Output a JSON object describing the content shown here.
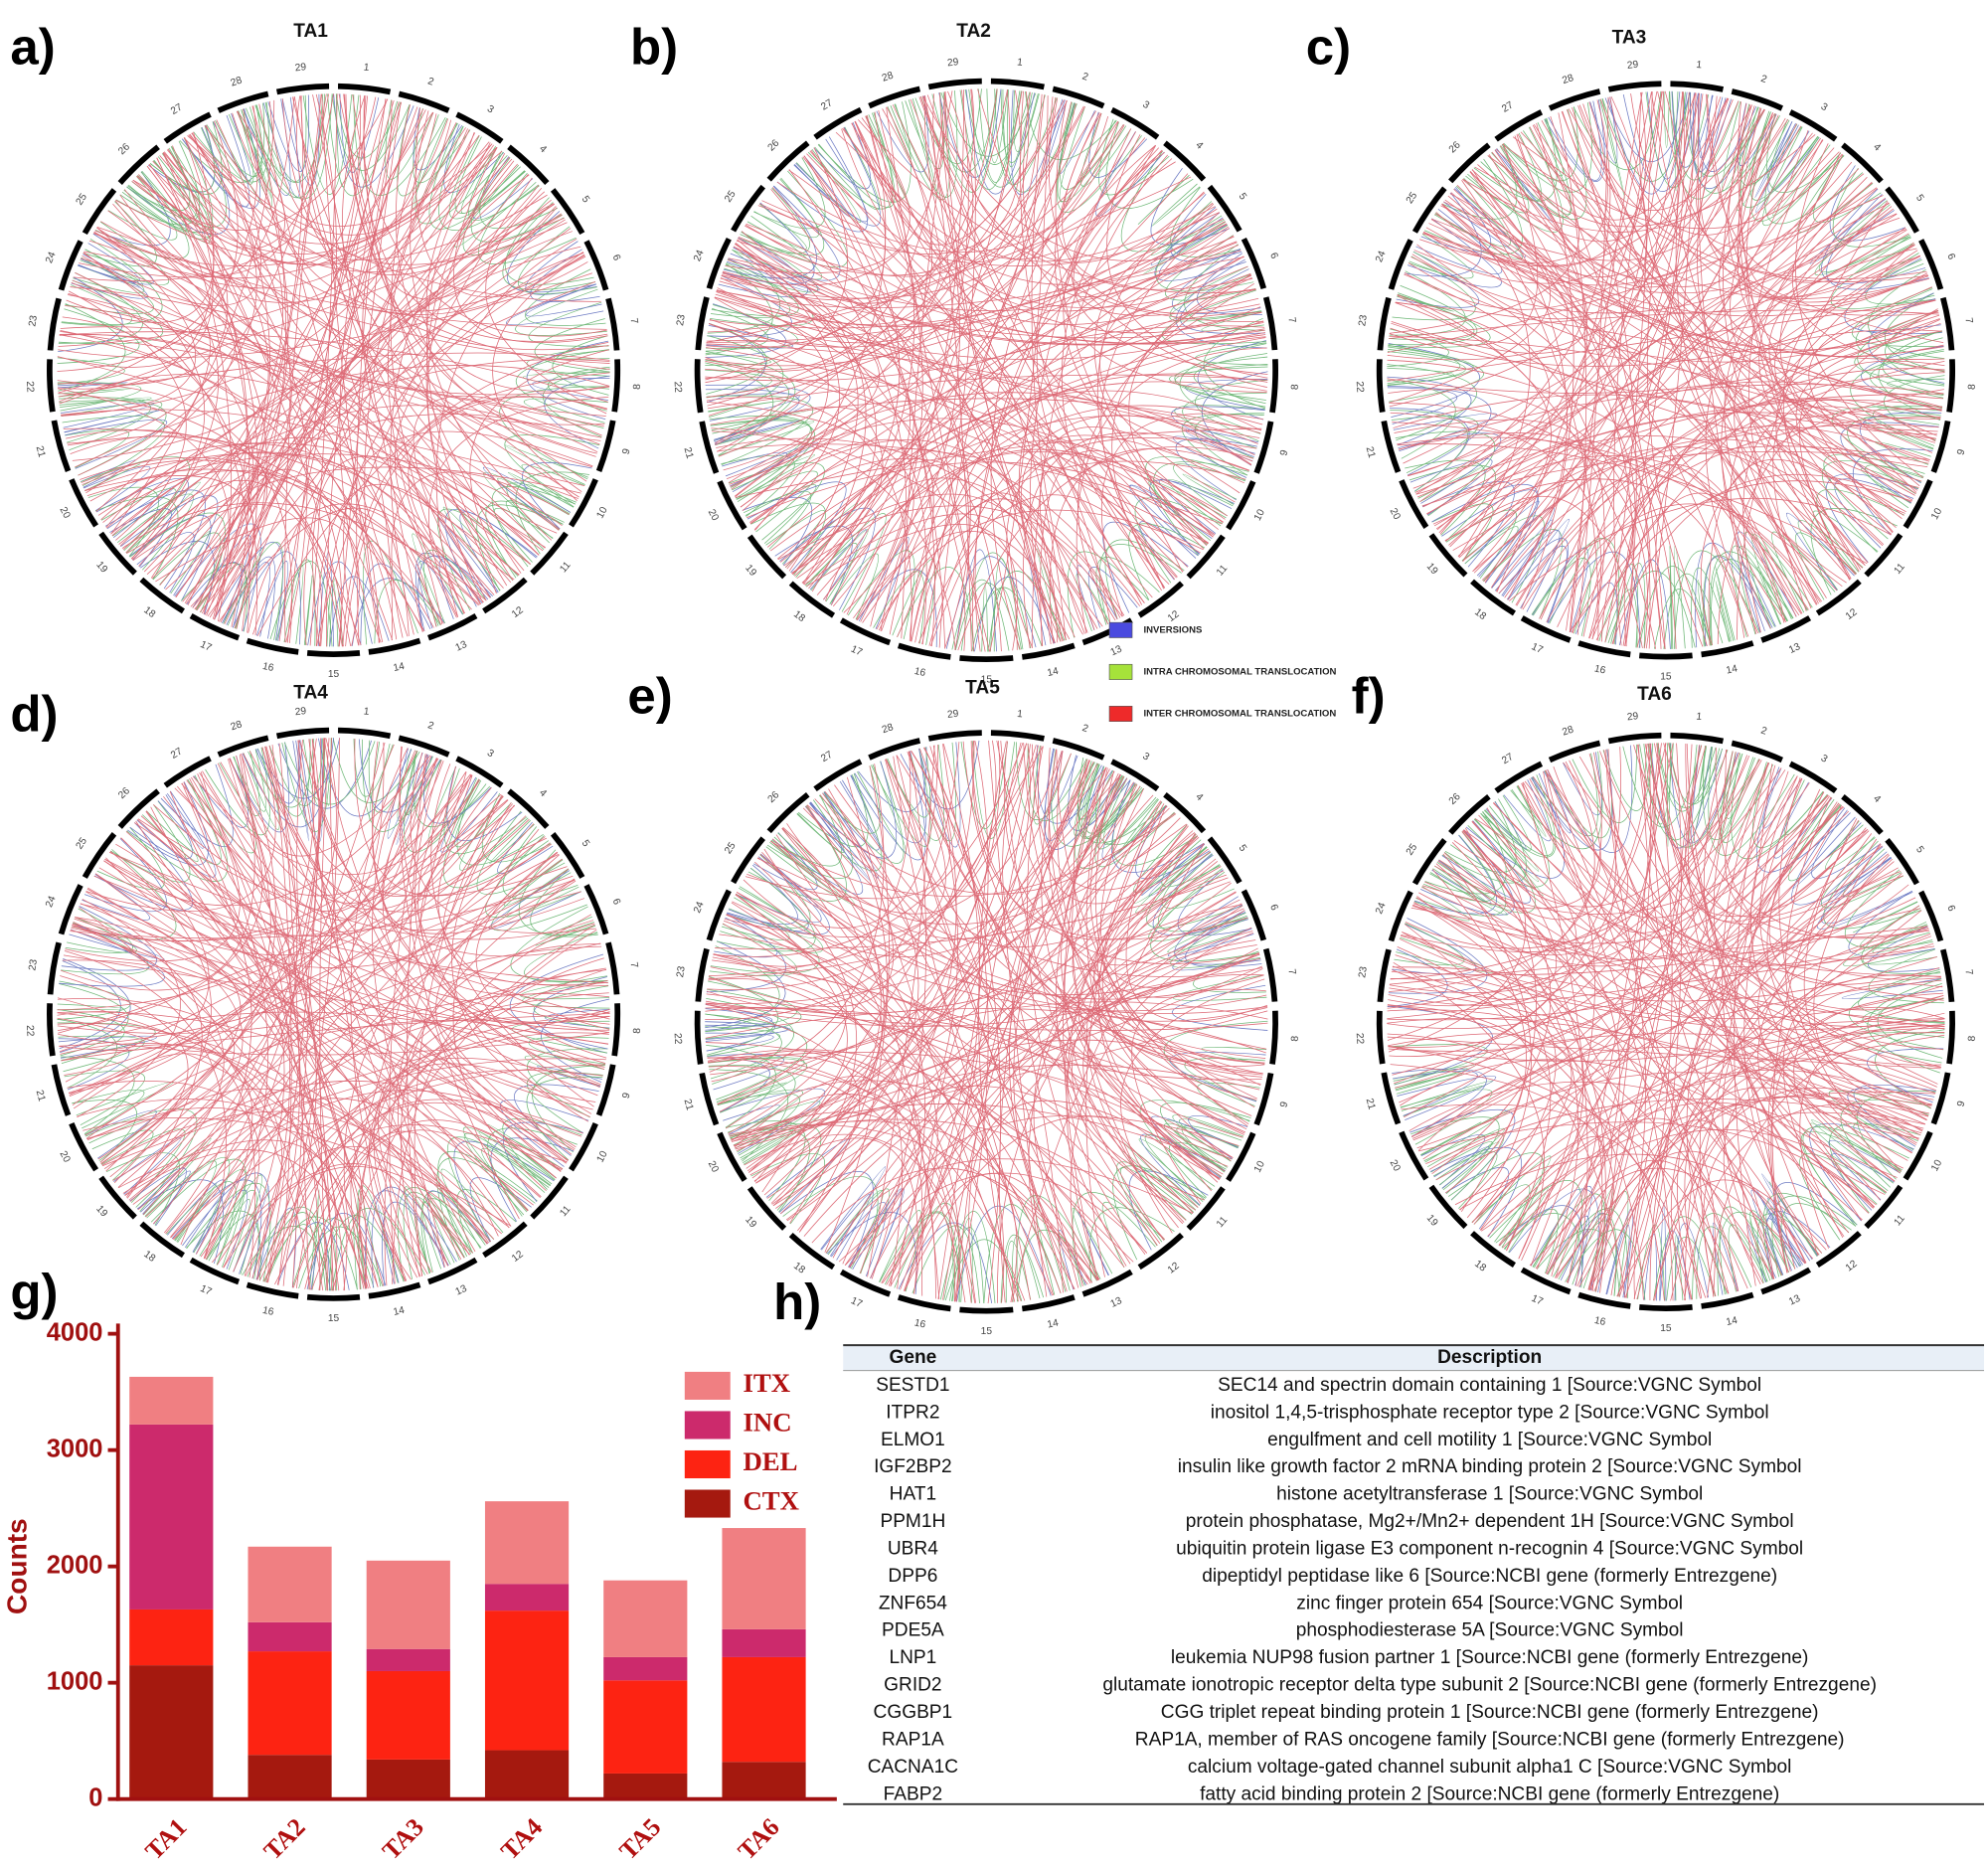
{
  "panels": [
    {
      "label": "a)",
      "title": "TA1"
    },
    {
      "label": "b)",
      "title": "TA2"
    },
    {
      "label": "c)",
      "title": "TA3"
    },
    {
      "label": "d)",
      "title": "TA4"
    },
    {
      "label": "e)",
      "title": "TA5"
    },
    {
      "label": "f)",
      "title": "TA6"
    }
  ],
  "chromosomes": [
    "1",
    "2",
    "3",
    "4",
    "5",
    "6",
    "7",
    "8",
    "9",
    "10",
    "11",
    "12",
    "13",
    "14",
    "15",
    "16",
    "17",
    "18",
    "19",
    "20",
    "21",
    "22",
    "23",
    "24",
    "25",
    "26",
    "27",
    "28",
    "29"
  ],
  "link_legend": [
    {
      "name": "INVERSIONS",
      "color": "#4a4adf"
    },
    {
      "name": "INTRA CHROMOSOMAL TRANSLOCATION",
      "color": "#a6e23a"
    },
    {
      "name": "INTER CHROMOSOMAL TRANSLOCATION",
      "color": "#ee2a2a"
    }
  ],
  "chart_data": {
    "type": "bar",
    "stacked": true,
    "panel_label": "g)",
    "y_label": "Counts",
    "categories": [
      "TA1",
      "TA2",
      "TA3",
      "TA4",
      "TA5",
      "TA6"
    ],
    "series": [
      {
        "name": "CTX",
        "color": "#a5190f",
        "values": [
          1150,
          380,
          340,
          420,
          220,
          320
        ]
      },
      {
        "name": "DEL",
        "color": "#fd2312",
        "values": [
          480,
          890,
          760,
          1200,
          800,
          900
        ]
      },
      {
        "name": "INC",
        "color": "#cc2a6c",
        "values": [
          1590,
          250,
          190,
          230,
          200,
          240
        ]
      },
      {
        "name": "ITX",
        "color": "#f07f82",
        "values": [
          410,
          650,
          760,
          710,
          660,
          870
        ]
      }
    ],
    "ylim": [
      0,
      4000
    ],
    "yticks": [
      0,
      1000,
      2000,
      3000,
      4000
    ]
  },
  "table": {
    "panel_label": "h)",
    "columns": [
      "Gene",
      "Description"
    ],
    "rows": [
      [
        "SESTD1",
        "SEC14 and spectrin domain containing 1 [Source:VGNC Symbol"
      ],
      [
        "ITPR2",
        "inositol 1,4,5-trisphosphate receptor type 2 [Source:VGNC Symbol"
      ],
      [
        "ELMO1",
        "engulfment and cell motility 1 [Source:VGNC Symbol"
      ],
      [
        "IGF2BP2",
        "insulin like growth factor 2 mRNA binding protein 2 [Source:VGNC Symbol"
      ],
      [
        "HAT1",
        "histone acetyltransferase 1 [Source:VGNC Symbol"
      ],
      [
        "PPM1H",
        "protein phosphatase, Mg2+/Mn2+ dependent 1H [Source:VGNC Symbol"
      ],
      [
        "UBR4",
        "ubiquitin protein ligase E3 component n-recognin 4 [Source:VGNC Symbol"
      ],
      [
        "DPP6",
        "dipeptidyl peptidase like 6 [Source:NCBI gene (formerly Entrezgene)"
      ],
      [
        "ZNF654",
        "zinc finger protein 654 [Source:VGNC Symbol"
      ],
      [
        "PDE5A",
        "phosphodiesterase 5A [Source:VGNC Symbol"
      ],
      [
        "LNP1",
        "leukemia NUP98 fusion partner 1 [Source:NCBI gene (formerly Entrezgene)"
      ],
      [
        "GRID2",
        "glutamate ionotropic receptor delta type subunit 2 [Source:NCBI gene (formerly Entrezgene)"
      ],
      [
        "CGGBP1",
        "CGG triplet repeat binding protein 1 [Source:NCBI gene (formerly Entrezgene)"
      ],
      [
        "RAP1A",
        "RAP1A, member of RAS oncogene family [Source:NCBI gene (formerly Entrezgene)"
      ],
      [
        "CACNA1C",
        "calcium voltage-gated channel subunit alpha1 C [Source:VGNC Symbol"
      ],
      [
        "FABP2",
        "fatty acid binding protein 2 [Source:NCBI gene (formerly Entrezgene)"
      ]
    ]
  }
}
